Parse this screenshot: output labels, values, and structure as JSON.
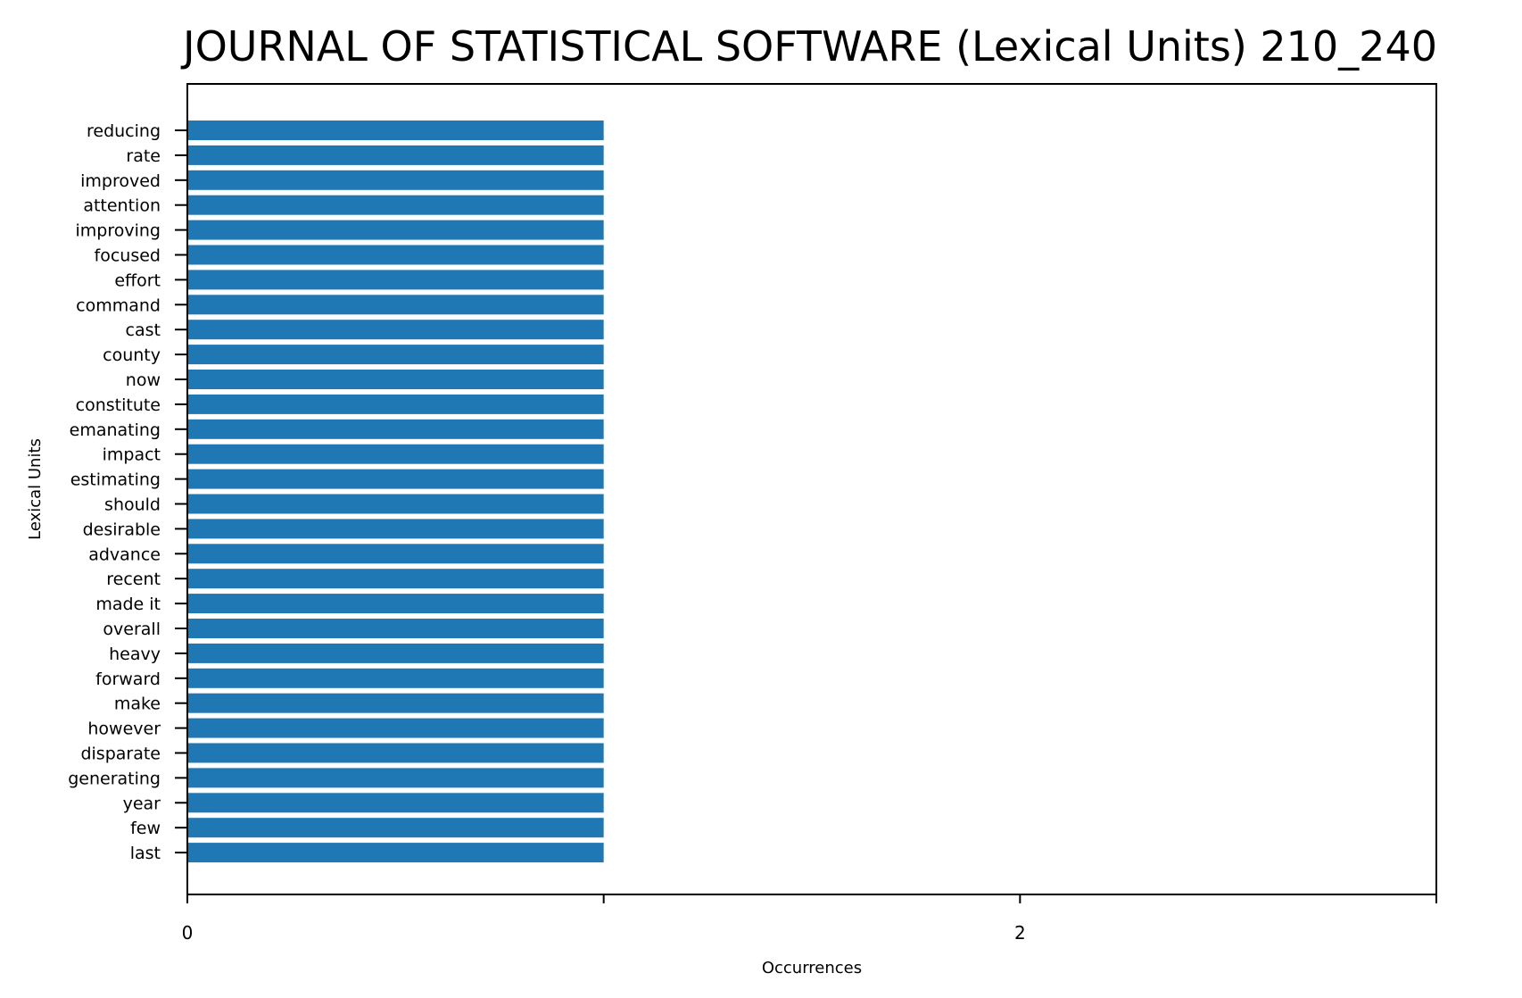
{
  "chart_data": {
    "type": "bar",
    "orientation": "horizontal",
    "title": "JOURNAL OF STATISTICAL SOFTWARE (Lexical Units) 210_240",
    "xlabel": "Occurrences",
    "ylabel": "Lexical Units",
    "categories": [
      "reducing",
      "rate",
      "improved",
      "attention",
      "improving",
      "focused",
      "effort",
      "command",
      "cast",
      "county",
      "now",
      "constitute",
      "emanating",
      "impact",
      "estimating",
      "should",
      "desirable",
      "advance",
      "recent",
      "made it",
      "overall",
      "heavy",
      "forward",
      "make",
      "however",
      "disparate",
      "generating",
      "year",
      "few",
      "last"
    ],
    "values": [
      1,
      1,
      1,
      1,
      1,
      1,
      1,
      1,
      1,
      1,
      1,
      1,
      1,
      1,
      1,
      1,
      1,
      1,
      1,
      1,
      1,
      1,
      1,
      1,
      1,
      1,
      1,
      1,
      1,
      1
    ],
    "xlim": [
      0,
      3
    ],
    "x_ticks": [
      0,
      1,
      2,
      3
    ],
    "x_tick_labels": [
      "0",
      "",
      "2",
      ""
    ],
    "bar_color": "#1f77b4",
    "grid": false,
    "legend": "none"
  }
}
